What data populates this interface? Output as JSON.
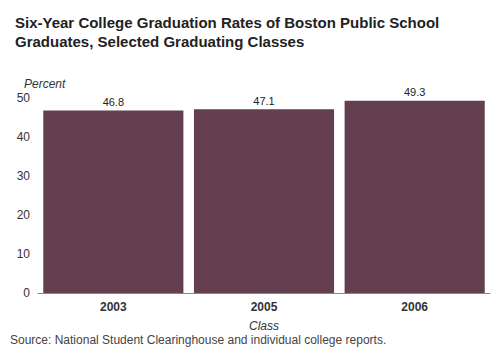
{
  "chart_data": {
    "type": "bar",
    "title": "Six-Year College Graduation Rates of Boston Public School Graduates, Selected Graduating Classes",
    "y_label": "Percent",
    "x_label": "Class",
    "source": "Source: National Student Clearinghouse and individual college reports.",
    "categories": [
      "2003",
      "2005",
      "2006"
    ],
    "values": [
      46.8,
      47.1,
      49.3
    ],
    "color": "#643f4f",
    "ylim": [
      0,
      50
    ],
    "yticks": [
      0,
      10,
      20,
      30,
      40,
      50
    ],
    "grid": false,
    "data_labels": true
  }
}
